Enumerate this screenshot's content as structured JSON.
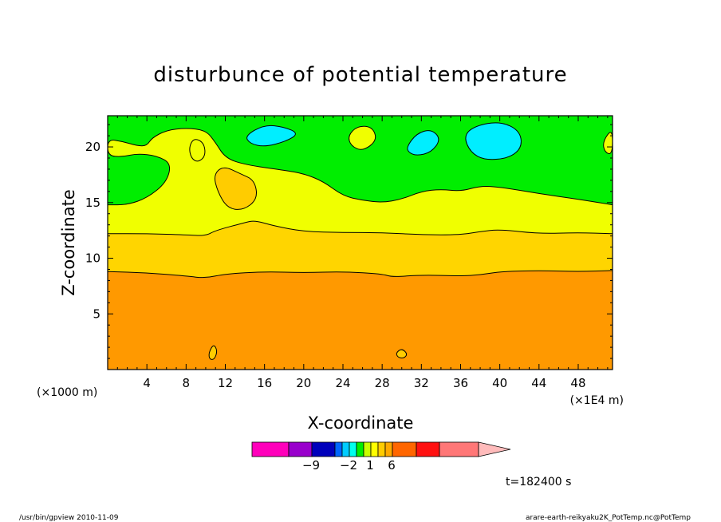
{
  "chart_data": {
    "type": "heatmap",
    "title": "disturbunce of potential temperature",
    "xlabel": "X-coordinate",
    "ylabel": "Z-coordinate",
    "x_unit_left": "(×1000 m)",
    "x_unit_right": "(×1E4 m)",
    "xlim": [
      0,
      51.5
    ],
    "ylim": [
      0,
      22.8
    ],
    "x_ticks": [
      4,
      8,
      12,
      16,
      20,
      24,
      28,
      32,
      36,
      40,
      44,
      48
    ],
    "y_ticks": [
      5,
      10,
      15,
      20
    ],
    "colors": {
      "orange": "#ff9900",
      "gold": "#ffd500",
      "yellow": "#f0ff00",
      "green": "#00ee00",
      "cyan": "#00eeff",
      "light_orange": "#ffcc00"
    },
    "boundaries": {
      "orange_top": [
        [
          0,
          8.8
        ],
        [
          4,
          8.7
        ],
        [
          8,
          8.4
        ],
        [
          10,
          8.2
        ],
        [
          12,
          8.6
        ],
        [
          16,
          8.8
        ],
        [
          20,
          8.7
        ],
        [
          24,
          8.8
        ],
        [
          28,
          8.6
        ],
        [
          29,
          8.3
        ],
        [
          32,
          8.5
        ],
        [
          36,
          8.4
        ],
        [
          38,
          8.5
        ],
        [
          40,
          8.8
        ],
        [
          44,
          8.9
        ],
        [
          48,
          8.8
        ],
        [
          51.5,
          8.9
        ]
      ],
      "gold_top": [
        [
          0,
          12.2
        ],
        [
          4,
          12.2
        ],
        [
          8,
          12.1
        ],
        [
          10,
          12.0
        ],
        [
          11,
          12.5
        ],
        [
          14,
          13.2
        ],
        [
          15,
          13.4
        ],
        [
          17,
          12.9
        ],
        [
          20,
          12.4
        ],
        [
          24,
          12.3
        ],
        [
          28,
          12.3
        ],
        [
          32,
          12.1
        ],
        [
          36,
          12.1
        ],
        [
          38,
          12.4
        ],
        [
          40,
          12.6
        ],
        [
          44,
          12.2
        ],
        [
          48,
          12.3
        ],
        [
          51.5,
          12.2
        ]
      ],
      "yellow_top": [
        [
          0,
          14.8
        ],
        [
          2,
          14.8
        ],
        [
          4,
          15.4
        ],
        [
          6,
          16.8
        ],
        [
          6.5,
          18.5
        ],
        [
          5,
          19.2
        ],
        [
          3,
          19.4
        ],
        [
          1.5,
          19.1
        ],
        [
          0,
          19.2
        ],
        [
          0,
          20.7
        ],
        [
          1.5,
          20.5
        ],
        [
          3,
          20.1
        ],
        [
          4,
          20.1
        ],
        [
          4.5,
          20.8
        ],
        [
          6,
          21.5
        ],
        [
          8,
          21.7
        ],
        [
          10,
          21.5
        ],
        [
          11,
          20.4
        ],
        [
          12,
          19.0
        ],
        [
          14,
          18.4
        ],
        [
          18,
          17.9
        ],
        [
          20,
          17.6
        ],
        [
          22,
          16.9
        ],
        [
          24,
          15.6
        ],
        [
          26,
          15.2
        ],
        [
          28,
          15.0
        ],
        [
          30,
          15.3
        ],
        [
          32,
          16.0
        ],
        [
          34,
          16.2
        ],
        [
          36,
          16.0
        ],
        [
          38,
          16.5
        ],
        [
          40,
          16.4
        ],
        [
          44,
          15.8
        ],
        [
          48,
          15.3
        ],
        [
          51.5,
          14.8
        ]
      ]
    },
    "regions": [
      {
        "color": "light_orange",
        "pts": [
          [
            10.3,
            1.5
          ],
          [
            10.8,
            2.3
          ],
          [
            11.2,
            1.7
          ],
          [
            10.9,
            0.9
          ],
          [
            10.4,
            0.9
          ]
        ]
      },
      {
        "color": "light_orange",
        "pts": [
          [
            29.4,
            1.5
          ],
          [
            30,
            1.9
          ],
          [
            30.6,
            1.4
          ],
          [
            30.2,
            1.0
          ],
          [
            29.6,
            1.1
          ]
        ]
      },
      {
        "color": "light_orange",
        "pts": [
          [
            10.8,
            17.5
          ],
          [
            11.8,
            18.3
          ],
          [
            13.5,
            17.6
          ],
          [
            15,
            17
          ],
          [
            15.3,
            15.3
          ],
          [
            13.8,
            14.3
          ],
          [
            12.2,
            14.5
          ],
          [
            11.2,
            16
          ]
        ]
      },
      {
        "color": "yellow",
        "pts": [
          [
            8.3,
            20
          ],
          [
            8.8,
            20.8
          ],
          [
            9.8,
            20.4
          ],
          [
            10,
            19.2
          ],
          [
            9.2,
            18.6
          ],
          [
            8.5,
            19
          ]
        ]
      },
      {
        "color": "yellow",
        "pts": [
          [
            24.5,
            21
          ],
          [
            25.5,
            21.9
          ],
          [
            27,
            21.8
          ],
          [
            27.5,
            20.6
          ],
          [
            26,
            19.6
          ],
          [
            24.8,
            20.1
          ]
        ]
      },
      {
        "color": "yellow",
        "pts": [
          [
            50.5,
            20.5
          ],
          [
            51.5,
            21.7
          ],
          [
            51.5,
            19.3
          ],
          [
            50.7,
            19.5
          ]
        ]
      },
      {
        "color": "cyan",
        "pts": [
          [
            14,
            21
          ],
          [
            16,
            22
          ],
          [
            18,
            21.8
          ],
          [
            19.5,
            21.2
          ],
          [
            18.2,
            20.5
          ],
          [
            16,
            20.0
          ],
          [
            14.5,
            20.3
          ]
        ]
      },
      {
        "color": "cyan",
        "pts": [
          [
            30.5,
            20
          ],
          [
            31.5,
            21.2
          ],
          [
            33,
            21.6
          ],
          [
            34,
            20.7
          ],
          [
            33,
            19.5
          ],
          [
            31.5,
            19.2
          ],
          [
            30.7,
            19.5
          ]
        ]
      },
      {
        "color": "cyan",
        "pts": [
          [
            36.3,
            21
          ],
          [
            37.5,
            21.9
          ],
          [
            40,
            22.3
          ],
          [
            42,
            21.5
          ],
          [
            42.3,
            20
          ],
          [
            41,
            19
          ],
          [
            38.5,
            18.8
          ],
          [
            37,
            19.5
          ]
        ]
      }
    ],
    "colorbar": {
      "colors": [
        "#ff00bb",
        "#9900cc",
        "#0000bb",
        "#0066ff",
        "#00ccff",
        "#00ffee",
        "#00ee00",
        "#c8ff00",
        "#ffff00",
        "#ffcc00",
        "#ffaa00",
        "#ff6600",
        "#ff1111",
        "#ff7777",
        "#ffbbbb"
      ],
      "labels": [
        {
          "text": "−9",
          "index": 2
        },
        {
          "text": "−2",
          "index": 5
        },
        {
          "text": "1",
          "index": 8
        },
        {
          "text": "6",
          "index": 11
        }
      ]
    },
    "time_label": "t=182400 s",
    "footer_left": "/usr/bin/gpview  2010-11-09",
    "footer_right": "arare-earth-reikyaku2K_PotTemp.nc@PotTemp"
  }
}
